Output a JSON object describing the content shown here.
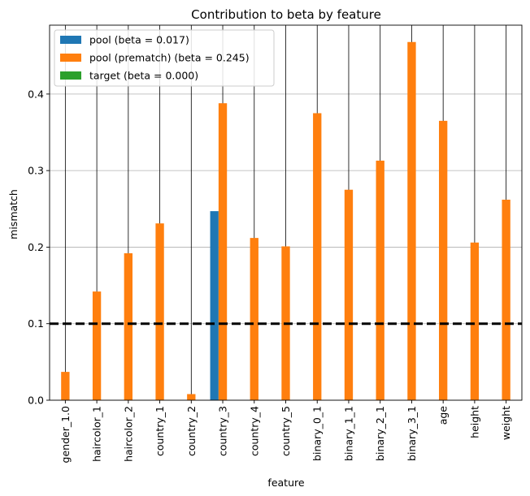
{
  "chart_data": {
    "type": "bar",
    "title": "Contribution to beta by feature",
    "xlabel": "feature",
    "ylabel": "mismatch",
    "ylim": [
      0,
      0.49
    ],
    "yticks": [
      "0.0",
      "0.1",
      "0.2",
      "0.3",
      "0.4"
    ],
    "categories": [
      "gender_1.0",
      "haircolor_1",
      "haircolor_2",
      "country_1",
      "country_2",
      "country_3",
      "country_4",
      "country_5",
      "binary_0_1",
      "binary_1_1",
      "binary_2_1",
      "binary_3_1",
      "age",
      "height",
      "weight"
    ],
    "series": [
      {
        "name": "pool (beta = 0.017)",
        "color": "#1f77b4",
        "values": [
          0,
          0,
          0,
          0,
          0,
          0.247,
          0,
          0,
          0,
          0,
          0,
          0,
          0,
          0,
          0
        ]
      },
      {
        "name": "pool (prematch) (beta = 0.245)",
        "color": "#ff7f0e",
        "values": [
          0.037,
          0.142,
          0.192,
          0.231,
          0.008,
          0.388,
          0.212,
          0.201,
          0.375,
          0.275,
          0.313,
          0.468,
          0.365,
          0.206,
          0.262
        ]
      },
      {
        "name": "target (beta = 0.000)",
        "color": "#2ca02c",
        "values": [
          0,
          0,
          0,
          0,
          0,
          0,
          0,
          0,
          0,
          0,
          0,
          0,
          0,
          0,
          0
        ]
      }
    ],
    "threshold": 0.1,
    "grid": {
      "y": true,
      "x": true
    },
    "legend_position": "top-left"
  }
}
